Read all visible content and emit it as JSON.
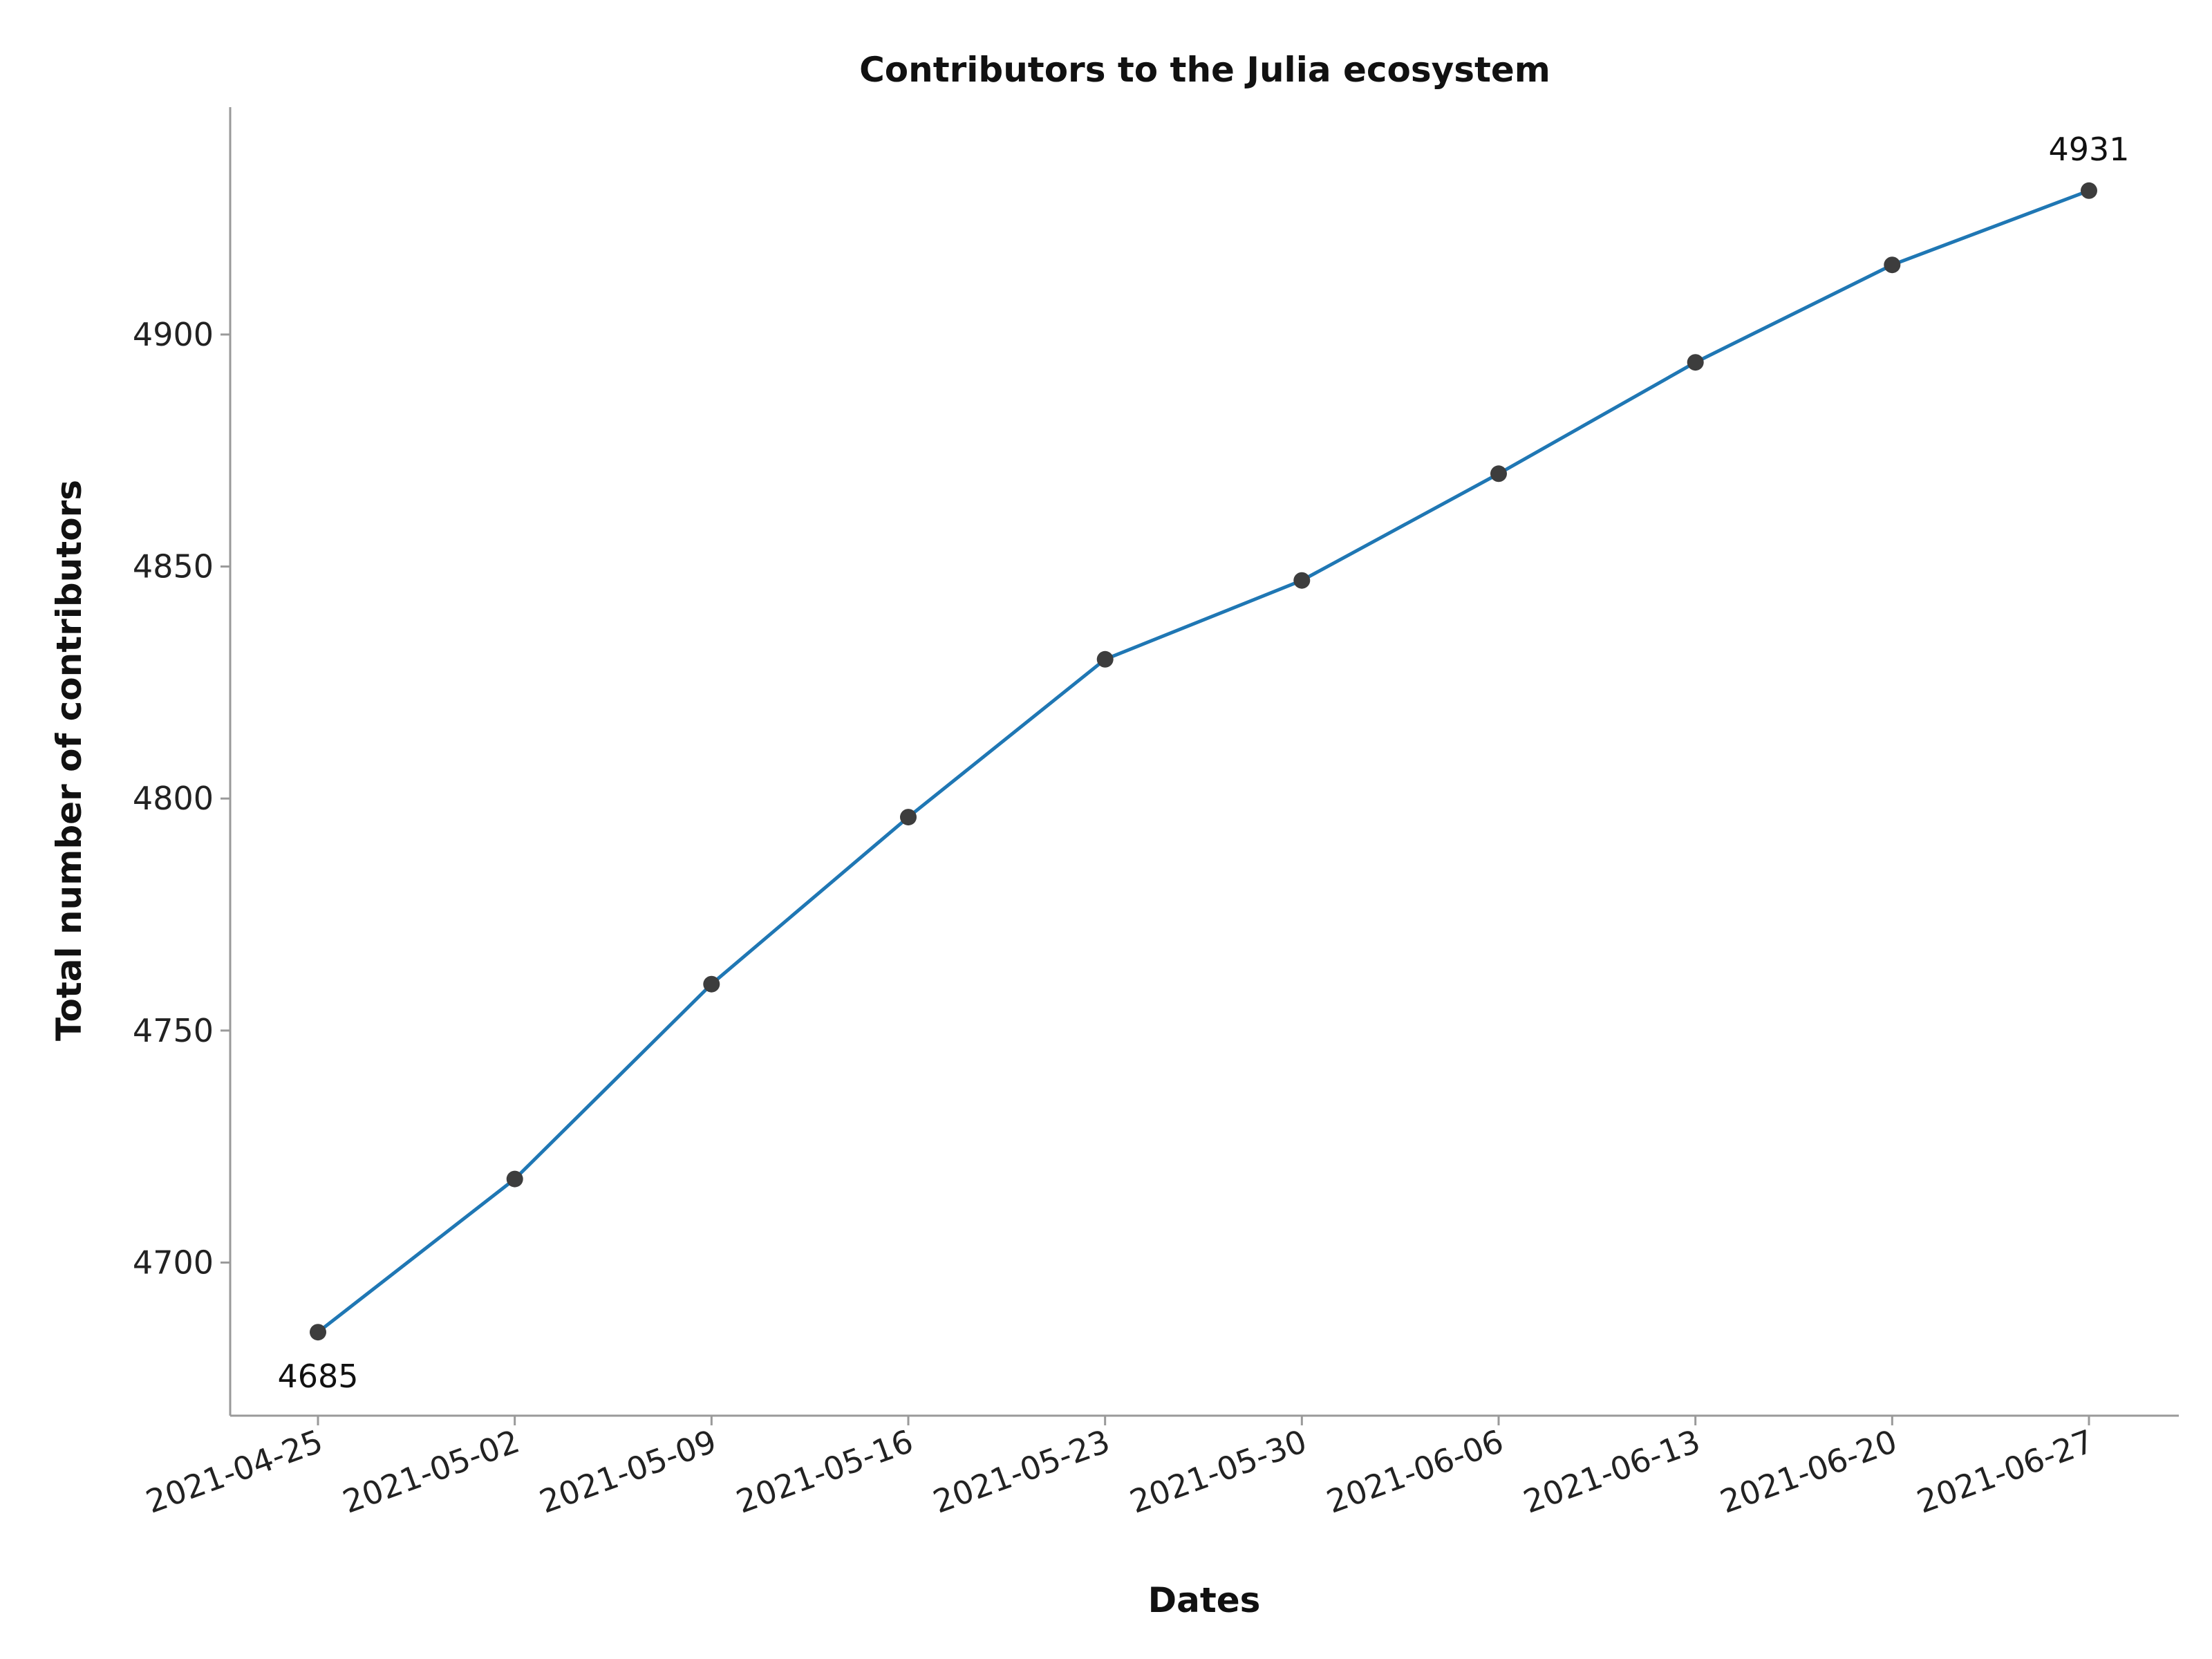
{
  "chart_data": {
    "type": "line",
    "title": "Contributors to the Julia ecosystem",
    "xlabel": "Dates",
    "ylabel": "Total number of contributors",
    "x": [
      "2021-04-25",
      "2021-05-02",
      "2021-05-09",
      "2021-05-16",
      "2021-05-23",
      "2021-05-30",
      "2021-06-06",
      "2021-06-13",
      "2021-06-20",
      "2021-06-27"
    ],
    "series": [
      {
        "values": [
          4685,
          4718,
          4760,
          4796,
          4830,
          4847,
          4870,
          4894,
          4915,
          4931
        ]
      }
    ],
    "data_labels": [
      {
        "x": "2021-04-25",
        "text": "4685"
      },
      {
        "x": "2021-06-27",
        "text": "4931"
      }
    ],
    "y_ticks": [
      4700,
      4750,
      4800,
      4850,
      4900
    ],
    "ylim": [
      4667,
      4949
    ],
    "grid": false,
    "legend": "none",
    "colors": {
      "line": "#1f77b4",
      "marker": "#3d3d3d",
      "axis": "#9a9a9a"
    }
  }
}
